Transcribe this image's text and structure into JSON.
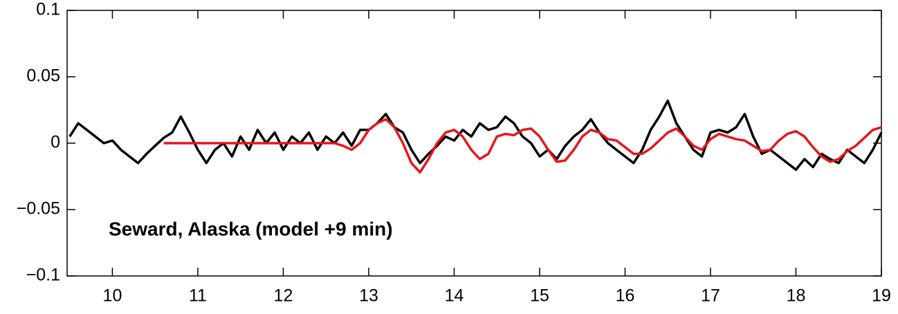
{
  "chart_data": {
    "type": "line",
    "annotation": "Seward, Alaska (model +9 min)",
    "x": [
      9.5,
      9.6,
      9.7,
      9.8,
      9.9,
      10.0,
      10.1,
      10.2,
      10.3,
      10.4,
      10.5,
      10.6,
      10.7,
      10.8,
      10.9,
      11.0,
      11.1,
      11.2,
      11.3,
      11.4,
      11.5,
      11.6,
      11.7,
      11.8,
      11.9,
      12.0,
      12.1,
      12.2,
      12.3,
      12.4,
      12.5,
      12.6,
      12.7,
      12.8,
      12.9,
      13.0,
      13.1,
      13.2,
      13.3,
      13.4,
      13.5,
      13.6,
      13.7,
      13.8,
      13.9,
      14.0,
      14.1,
      14.2,
      14.3,
      14.4,
      14.5,
      14.6,
      14.7,
      14.8,
      14.9,
      15.0,
      15.1,
      15.2,
      15.3,
      15.4,
      15.5,
      15.6,
      15.7,
      15.8,
      15.9,
      16.0,
      16.1,
      16.2,
      16.3,
      16.4,
      16.5,
      16.6,
      16.7,
      16.8,
      16.9,
      17.0,
      17.1,
      17.2,
      17.3,
      17.4,
      17.5,
      17.6,
      17.7,
      17.8,
      17.9,
      18.0,
      18.1,
      18.2,
      18.3,
      18.4,
      18.5,
      18.6,
      18.7,
      18.8,
      18.9,
      19.0
    ],
    "series": [
      {
        "color": "#000000",
        "values": [
          0.005,
          0.015,
          0.01,
          0.005,
          0.0,
          0.002,
          -0.005,
          -0.01,
          -0.015,
          -0.008,
          -0.002,
          0.004,
          0.008,
          0.02,
          0.008,
          -0.005,
          -0.015,
          -0.005,
          0.0,
          -0.01,
          0.005,
          -0.005,
          0.01,
          0.0,
          0.008,
          -0.005,
          0.005,
          0.0,
          0.008,
          -0.005,
          0.005,
          0.0,
          0.008,
          -0.002,
          0.01,
          0.01,
          0.015,
          0.022,
          0.012,
          0.008,
          -0.005,
          -0.015,
          -0.008,
          -0.002,
          0.005,
          0.002,
          0.01,
          0.005,
          0.015,
          0.01,
          0.012,
          0.02,
          0.015,
          0.005,
          0.0,
          -0.01,
          -0.005,
          -0.012,
          -0.002,
          0.005,
          0.01,
          0.018,
          0.008,
          0.0,
          -0.005,
          -0.01,
          -0.015,
          -0.005,
          0.01,
          0.02,
          0.032,
          0.015,
          0.005,
          -0.005,
          -0.01,
          0.008,
          0.01,
          0.008,
          0.012,
          0.022,
          0.005,
          -0.008,
          -0.005,
          -0.01,
          -0.015,
          -0.02,
          -0.012,
          -0.018,
          -0.008,
          -0.012,
          -0.015,
          -0.005,
          -0.01,
          -0.015,
          -0.005,
          0.008
        ]
      },
      {
        "color": "#e8141b",
        "values": [
          null,
          null,
          null,
          null,
          null,
          null,
          null,
          null,
          null,
          null,
          null,
          0,
          0,
          0,
          0,
          0,
          0,
          0,
          0,
          0,
          0,
          0,
          0,
          0,
          0,
          0,
          0,
          0,
          0,
          0,
          0,
          0,
          -0.002,
          -0.005,
          0.0,
          0.01,
          0.015,
          0.018,
          0.012,
          0.0,
          -0.015,
          -0.022,
          -0.012,
          0.0,
          0.008,
          0.01,
          0.005,
          -0.005,
          -0.012,
          -0.008,
          0.005,
          0.007,
          0.006,
          0.01,
          0.011,
          0.005,
          -0.005,
          -0.014,
          -0.013,
          -0.005,
          0.005,
          0.01,
          0.008,
          0.003,
          0.002,
          -0.003,
          -0.008,
          -0.008,
          -0.004,
          0.002,
          0.008,
          0.011,
          0.005,
          -0.002,
          -0.005,
          0.003,
          0.007,
          0.005,
          0.003,
          0.002,
          -0.002,
          -0.006,
          -0.005,
          0.002,
          0.007,
          0.009,
          0.005,
          -0.003,
          -0.01,
          -0.014,
          -0.012,
          -0.006,
          -0.002,
          0.004,
          0.01,
          0.012
        ]
      }
    ],
    "xlim": [
      9.47,
      19
    ],
    "xticks": [
      10,
      11,
      12,
      13,
      14,
      15,
      16,
      17,
      18,
      19
    ],
    "ylim": [
      -0.1,
      0.1
    ],
    "yticks": [
      {
        "value": -0.1,
        "label": "−0.1"
      },
      {
        "value": -0.05,
        "label": "−0.05"
      },
      0,
      0.05,
      0.1
    ]
  }
}
